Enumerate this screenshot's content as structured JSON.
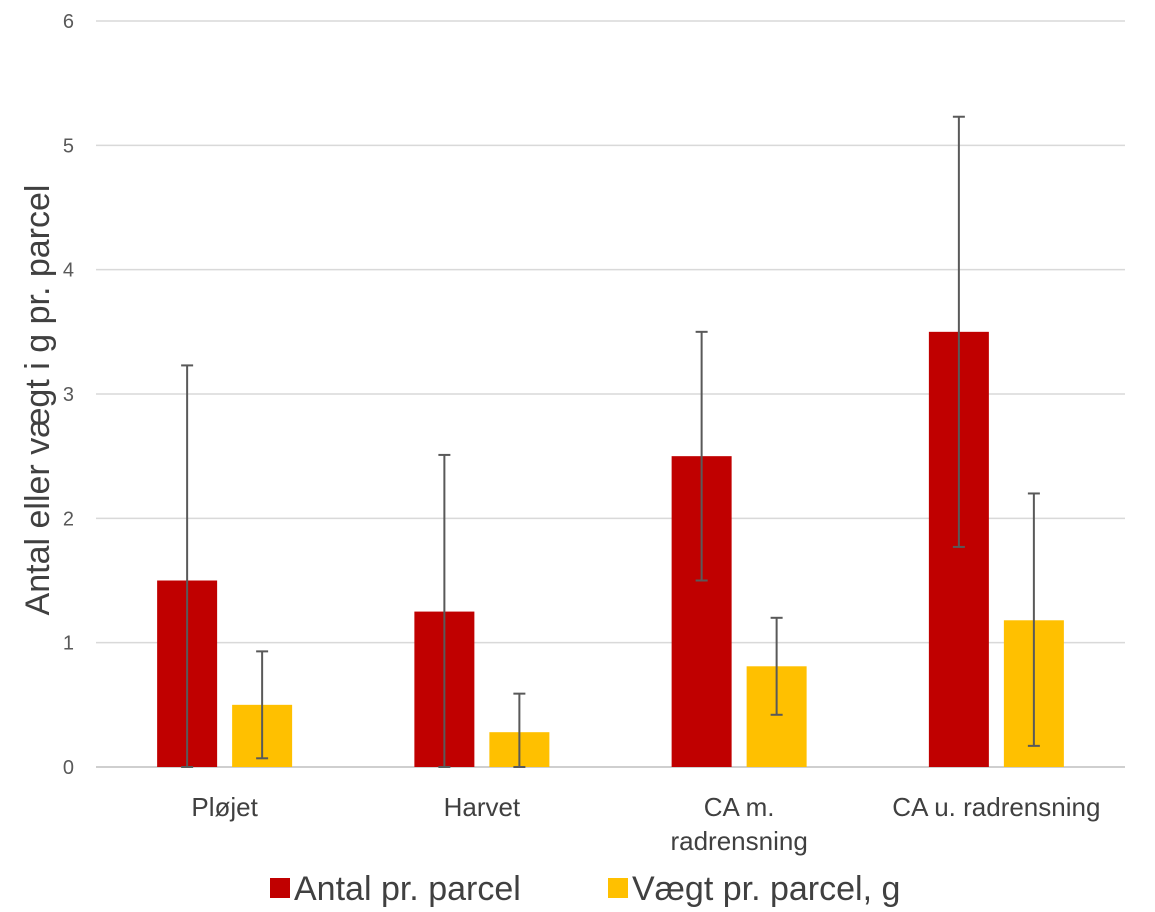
{
  "chart_data": {
    "type": "bar",
    "title": "",
    "xlabel": "",
    "ylabel": "Antal eller vægt i g pr. parcel",
    "ylim": [
      0,
      6
    ],
    "yticks": [
      0,
      1,
      2,
      3,
      4,
      5,
      6
    ],
    "grid": true,
    "legend_position": "bottom",
    "categories": [
      [
        "Pløjet"
      ],
      [
        "Harvet"
      ],
      [
        "CA m.",
        "radrensning"
      ],
      [
        "CA u. radrensning"
      ]
    ],
    "series": [
      {
        "name": "Antal pr. parcel",
        "color": "#C00000",
        "values": [
          1.5,
          1.25,
          2.5,
          3.5
        ],
        "error_low": [
          0.0,
          0.0,
          1.5,
          1.77
        ],
        "error_high": [
          3.23,
          2.51,
          3.5,
          5.23
        ]
      },
      {
        "name": "Vægt pr. parcel, g",
        "color": "#FFC000",
        "values": [
          0.5,
          0.28,
          0.81,
          1.18
        ],
        "error_low": [
          0.07,
          0.0,
          0.42,
          0.17
        ],
        "error_high": [
          0.93,
          0.59,
          1.2,
          2.2
        ]
      }
    ]
  }
}
